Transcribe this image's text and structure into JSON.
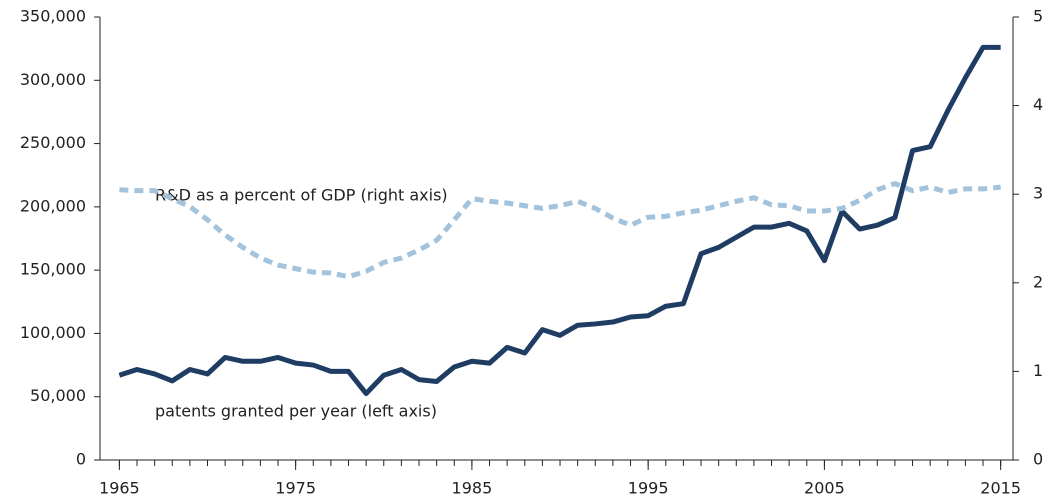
{
  "chart_data": {
    "type": "line",
    "annotations": [
      "R&D as a percent of GDP (right axis)",
      "patents granted per year (left axis)"
    ],
    "x": [
      1965,
      1966,
      1967,
      1968,
      1969,
      1970,
      1971,
      1972,
      1973,
      1974,
      1975,
      1976,
      1977,
      1978,
      1979,
      1980,
      1981,
      1982,
      1983,
      1984,
      1985,
      1986,
      1987,
      1988,
      1989,
      1990,
      1991,
      1992,
      1993,
      1994,
      1995,
      1996,
      1997,
      1998,
      1999,
      2000,
      2001,
      2002,
      2003,
      2004,
      2005,
      2006,
      2007,
      2008,
      2009,
      2010,
      2011,
      2012,
      2013,
      2014,
      2015
    ],
    "series": [
      {
        "name": "patents granted per year (left axis)",
        "color": "#1f3d63",
        "axis": "y",
        "values": [
          67000,
          71500,
          68000,
          62500,
          71500,
          68000,
          81000,
          78000,
          78000,
          81000,
          76500,
          75000,
          70000,
          70000,
          52500,
          67000,
          71500,
          63500,
          62000,
          73500,
          78000,
          76500,
          89000,
          84500,
          103000,
          98500,
          106500,
          107500,
          109000,
          113000,
          114000,
          121500,
          123500,
          163000,
          168000,
          176000,
          184000,
          184000,
          187000,
          181000,
          157500,
          196500,
          182500,
          185500,
          191500,
          244500,
          247500,
          276000,
          302000,
          326000,
          326000
        ]
      },
      {
        "name": "R&D as a percent of GDP (right axis)",
        "color": "#a3c2dc",
        "axis": "y2",
        "values": [
          3.05,
          3.04,
          3.04,
          2.95,
          2.86,
          2.71,
          2.54,
          2.4,
          2.28,
          2.2,
          2.16,
          2.12,
          2.11,
          2.07,
          2.13,
          2.23,
          2.28,
          2.37,
          2.48,
          2.71,
          2.95,
          2.92,
          2.9,
          2.87,
          2.84,
          2.87,
          2.92,
          2.84,
          2.73,
          2.65,
          2.74,
          2.75,
          2.79,
          2.82,
          2.87,
          2.92,
          2.96,
          2.88,
          2.87,
          2.81,
          2.81,
          2.84,
          2.93,
          3.05,
          3.12,
          3.04,
          3.08,
          3.02,
          3.06,
          3.06,
          3.08
        ]
      }
    ],
    "xlim": [
      1963.9,
      2015.7
    ],
    "xticks": [
      1965,
      1975,
      1985,
      1995,
      2005,
      2015
    ],
    "ylim": [
      0,
      350000
    ],
    "yticks": [
      0,
      {
        "value": 50000,
        "label": "50,000"
      },
      {
        "value": 100000,
        "label": "100,000"
      },
      {
        "value": 150000,
        "label": "150,000"
      },
      {
        "value": 200000,
        "label": "200,000"
      },
      {
        "value": 250000,
        "label": "250,000"
      },
      {
        "value": 300000,
        "label": "300,000"
      },
      {
        "value": 350000,
        "label": "350,000"
      }
    ],
    "y2lim": [
      0,
      5
    ],
    "y2ticks": [
      0,
      1,
      2,
      3,
      4,
      5
    ],
    "grid": false
  }
}
